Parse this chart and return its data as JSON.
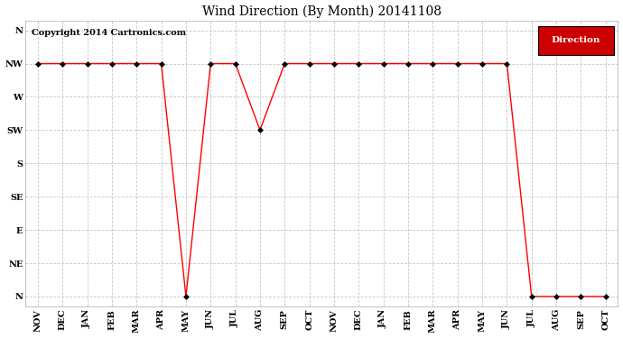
{
  "title": "Wind Direction (By Month) 20141108",
  "copyright": "Copyright 2014 Cartronics.com",
  "x_labels": [
    "NOV",
    "DEC",
    "JAN",
    "FEB",
    "MAR",
    "APR",
    "MAY",
    "JUN",
    "JUL",
    "AUG",
    "SEP",
    "OCT",
    "NOV",
    "DEC",
    "JAN",
    "FEB",
    "MAR",
    "APR",
    "MAY",
    "JUN",
    "JUL",
    "AUG",
    "SEP",
    "OCT"
  ],
  "y_labels": [
    "N",
    "NW",
    "W",
    "SW",
    "S",
    "SE",
    "E",
    "NE",
    "N"
  ],
  "y_ticks": [
    8,
    7,
    6,
    5,
    4,
    3,
    2,
    1,
    0
  ],
  "x_data": [
    0,
    1,
    2,
    3,
    4,
    5,
    6,
    7,
    8,
    9,
    10,
    11,
    12,
    13,
    14,
    15,
    16,
    17,
    18,
    19,
    20,
    21,
    22,
    23
  ],
  "y_data": [
    7,
    7,
    7,
    7,
    7,
    7,
    0,
    7,
    7,
    5,
    7,
    7,
    7,
    7,
    7,
    7,
    7,
    7,
    7,
    7,
    0,
    0,
    0,
    0
  ],
  "line_color": "#ff0000",
  "marker_color": "#000000",
  "marker_size": 3,
  "background_color": "#ffffff",
  "plot_bg_color": "#ffffff",
  "grid_color": "#c8c8c8",
  "legend_bg": "#cc0000",
  "legend_text": "Direction",
  "legend_text_color": "#ffffff",
  "title_fontsize": 10,
  "axis_fontsize": 7,
  "copyright_fontsize": 7
}
